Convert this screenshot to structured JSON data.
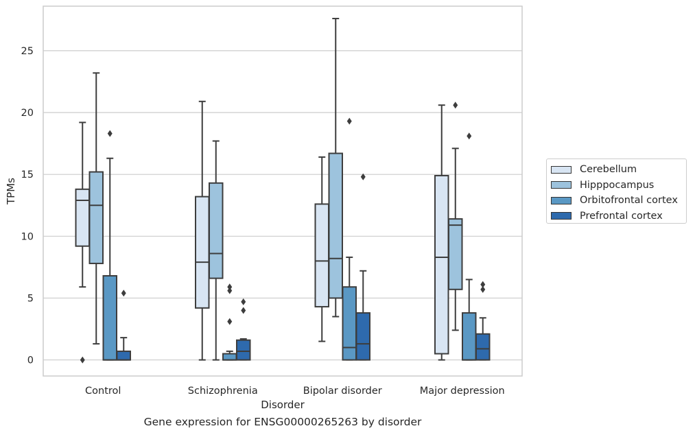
{
  "chart_data": {
    "type": "box",
    "title": "",
    "caption": "Gene expression for ENSG00000265263 by disorder",
    "xlabel": "Disorder",
    "ylabel": "TPMs",
    "ylim": [
      -1.3,
      28.6
    ],
    "yticks": [
      0,
      5,
      10,
      15,
      20,
      25
    ],
    "grid": "horizontal",
    "legend_position": "right",
    "categories": [
      "Control",
      "Schizophrenia",
      "Bipolar disorder",
      "Major depression"
    ],
    "series": [
      {
        "name": "Cerebellum",
        "color": "#d8e5f3",
        "boxes": [
          {
            "whislo": 5.9,
            "q1": 9.2,
            "med": 12.9,
            "q3": 13.8,
            "whishi": 19.2,
            "fliers": [
              0.0
            ]
          },
          {
            "whislo": 0.0,
            "q1": 4.2,
            "med": 7.9,
            "q3": 13.2,
            "whishi": 20.9,
            "fliers": []
          },
          {
            "whislo": 1.5,
            "q1": 4.3,
            "med": 8.0,
            "q3": 12.6,
            "whishi": 16.4,
            "fliers": []
          },
          {
            "whislo": 0.0,
            "q1": 0.5,
            "med": 8.3,
            "q3": 14.9,
            "whishi": 20.6,
            "fliers": []
          }
        ]
      },
      {
        "name": "Hipppocampus",
        "color": "#9dc3dd",
        "boxes": [
          {
            "whislo": 1.3,
            "q1": 7.8,
            "med": 12.5,
            "q3": 15.2,
            "whishi": 23.2,
            "fliers": []
          },
          {
            "whislo": 0.0,
            "q1": 6.6,
            "med": 8.6,
            "q3": 14.3,
            "whishi": 17.7,
            "fliers": []
          },
          {
            "whislo": 3.5,
            "q1": 5.0,
            "med": 8.2,
            "q3": 16.7,
            "whishi": 27.6,
            "fliers": []
          },
          {
            "whislo": 2.4,
            "q1": 5.7,
            "med": 10.9,
            "q3": 11.4,
            "whishi": 17.1,
            "fliers": [
              20.6
            ]
          }
        ]
      },
      {
        "name": "Orbitofrontal cortex",
        "color": "#5a98c4",
        "boxes": [
          {
            "whislo": 0.0,
            "q1": 0.0,
            "med": 0.0,
            "q3": 6.8,
            "whishi": 16.3,
            "fliers": [
              18.3
            ]
          },
          {
            "whislo": 0.0,
            "q1": 0.0,
            "med": 0.0,
            "q3": 0.5,
            "whishi": 0.7,
            "fliers": [
              3.1,
              5.6,
              5.9
            ]
          },
          {
            "whislo": 0.0,
            "q1": 0.0,
            "med": 1.0,
            "q3": 5.9,
            "whishi": 8.3,
            "fliers": [
              19.3
            ]
          },
          {
            "whislo": 0.0,
            "q1": 0.0,
            "med": 0.0,
            "q3": 3.8,
            "whishi": 6.5,
            "fliers": [
              18.1
            ]
          }
        ]
      },
      {
        "name": "Prefrontal cortex",
        "color": "#2e6aad",
        "boxes": [
          {
            "whislo": 0.0,
            "q1": 0.0,
            "med": 0.0,
            "q3": 0.7,
            "whishi": 1.8,
            "fliers": [
              5.4
            ]
          },
          {
            "whislo": 0.0,
            "q1": 0.0,
            "med": 0.7,
            "q3": 1.6,
            "whishi": 1.7,
            "fliers": [
              4.0,
              4.7
            ]
          },
          {
            "whislo": 0.0,
            "q1": 0.0,
            "med": 1.3,
            "q3": 3.8,
            "whishi": 7.2,
            "fliers": [
              14.8
            ]
          },
          {
            "whislo": 0.0,
            "q1": 0.0,
            "med": 0.9,
            "q3": 2.1,
            "whishi": 3.4,
            "fliers": [
              5.7,
              6.1
            ]
          }
        ]
      }
    ]
  }
}
